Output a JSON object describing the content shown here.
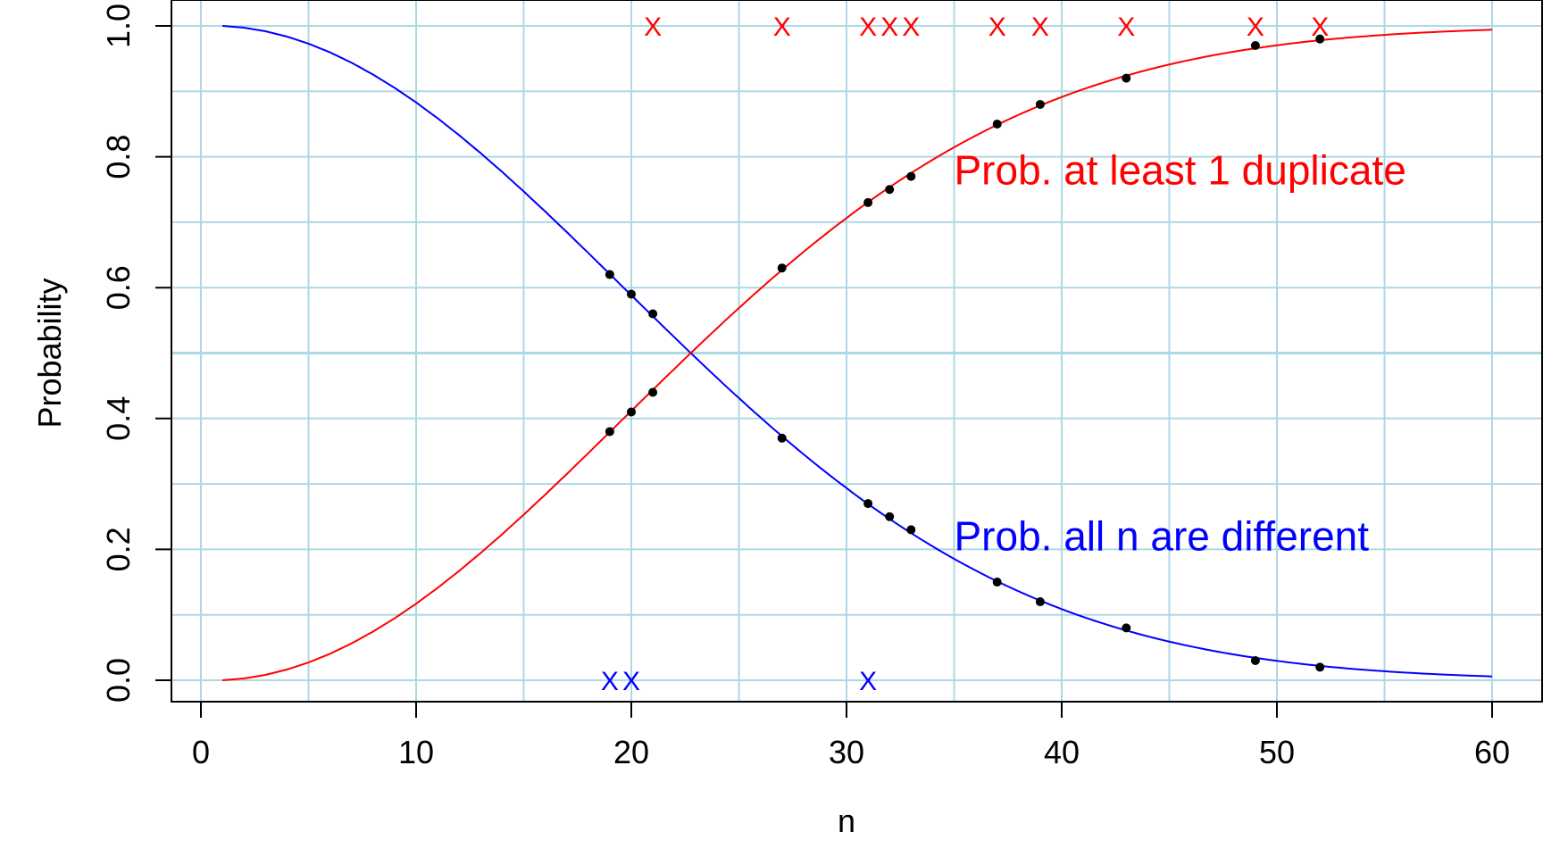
{
  "chart_data": {
    "type": "line",
    "xlabel": "n",
    "ylabel": "Probability",
    "xlim": [
      0,
      60
    ],
    "ylim": [
      0,
      1
    ],
    "x_ticks": [
      "0",
      "10",
      "20",
      "30",
      "40",
      "50",
      "60"
    ],
    "y_ticks": [
      "0.0",
      "0.2",
      "0.4",
      "0.6",
      "0.8",
      "1.0"
    ],
    "grid": true,
    "grid_color": "#add8e6",
    "series": [
      {
        "key": "all-different",
        "label": "Prob. all n are different",
        "color": "#0000ff",
        "x_range": [
          1,
          60
        ]
      },
      {
        "key": "at-least-one-duplicate",
        "label": "Prob. at least 1 duplicate",
        "color": "#ff0000",
        "x_range": [
          1,
          60
        ]
      }
    ],
    "sample_points": {
      "color": "#000000",
      "x": [
        19,
        20,
        21,
        27,
        31,
        32,
        33,
        37,
        39,
        43,
        49,
        52
      ],
      "all_different": [
        0.62,
        0.59,
        0.56,
        0.37,
        0.27,
        0.25,
        0.23,
        0.15,
        0.12,
        0.08,
        0.03,
        0.02
      ],
      "at_least_one_duplicate": [
        0.38,
        0.41,
        0.44,
        0.63,
        0.73,
        0.75,
        0.77,
        0.85,
        0.88,
        0.92,
        0.97,
        0.98
      ]
    },
    "x_marks": {
      "symbol": "X",
      "at_one": {
        "color": "#ff0000",
        "x": [
          21,
          27,
          31,
          32,
          33,
          37,
          39,
          43,
          49,
          52
        ],
        "y": 1.0
      },
      "at_zero": {
        "color": "#0000ff",
        "x": [
          19,
          20,
          31
        ],
        "y": 0.0
      }
    },
    "annotations": [
      {
        "text": "Prob. at least 1 duplicate",
        "color": "#ff0000",
        "x": 35,
        "y": 0.78
      },
      {
        "text": "Prob. all n are different",
        "color": "#0000ff",
        "x": 35,
        "y": 0.22
      }
    ]
  }
}
